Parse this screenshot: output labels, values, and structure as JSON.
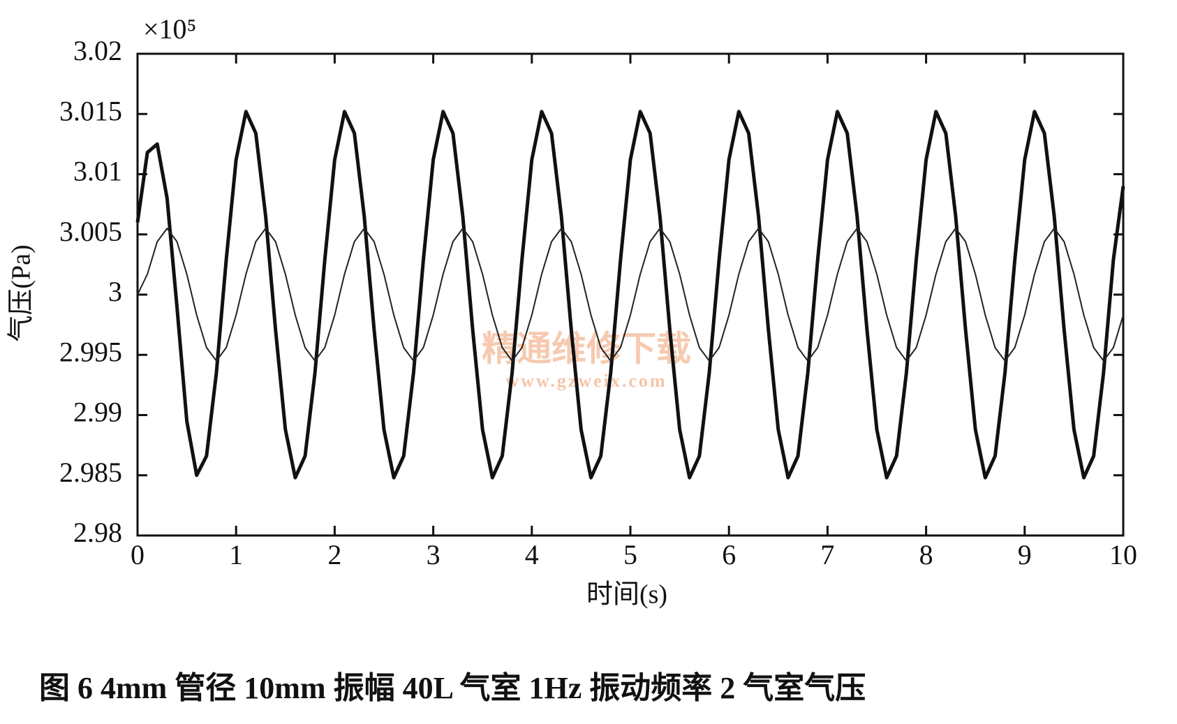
{
  "chart_data": {
    "type": "line",
    "y_multiplier": "×10⁵",
    "xlabel": "时间(s)",
    "ylabel": "气压(Pa)",
    "caption": "图 6   4mm 管径 10mm 振幅 40L 气室 1Hz 振动频率 2 气室气压",
    "watermark": [
      "精通维修下载",
      "www.gzweix.com"
    ],
    "xlim": [
      0,
      10
    ],
    "xticks": [
      0,
      1,
      2,
      3,
      4,
      5,
      6,
      7,
      8,
      9,
      10
    ],
    "ylim": [
      2.98,
      3.02
    ],
    "yticks": [
      2.98,
      2.985,
      2.99,
      2.995,
      3,
      3.005,
      3.01,
      3.015,
      3.02
    ],
    "x": [
      0,
      0.1,
      0.2,
      0.3,
      0.4,
      0.5,
      0.6,
      0.7,
      0.8,
      0.9,
      1,
      1.1,
      1.2,
      1.3,
      1.4,
      1.5,
      1.6,
      1.7,
      1.8,
      1.9,
      2,
      2.1,
      2.2,
      2.3,
      2.4,
      2.5,
      2.6,
      2.7,
      2.8,
      2.9,
      3,
      3.1,
      3.2,
      3.3,
      3.4,
      3.5,
      3.6,
      3.7,
      3.8,
      3.9,
      4,
      4.1,
      4.2,
      4.3,
      4.4,
      4.5,
      4.6,
      4.7,
      4.8,
      4.9,
      5,
      5.1,
      5.2,
      5.3,
      5.4,
      5.5,
      5.6,
      5.7,
      5.8,
      5.9,
      6,
      6.1,
      6.2,
      6.3,
      6.4,
      6.5,
      6.6,
      6.7,
      6.8,
      6.9,
      7,
      7.1,
      7.2,
      7.3,
      7.4,
      7.5,
      7.6,
      7.7,
      7.8,
      7.9,
      8,
      8.1,
      8.2,
      8.3,
      8.4,
      8.5,
      8.6,
      8.7,
      8.8,
      8.9,
      9,
      9.1,
      9.2,
      9.3,
      9.4,
      9.5,
      9.6,
      9.7,
      9.8,
      9.9,
      10
    ],
    "series": [
      {
        "color": "#111111",
        "values": [
          3.006,
          3.0118,
          3.0125,
          3.008,
          2.999,
          2.9895,
          2.985,
          2.9866,
          2.9935,
          3.0029,
          3.0112,
          3.0152,
          3.0134,
          3.0065,
          2.9971,
          2.9888,
          2.9848,
          2.9866,
          2.9935,
          3.0029,
          3.0112,
          3.0152,
          3.0134,
          3.0065,
          2.9971,
          2.9888,
          2.9848,
          2.9866,
          2.9935,
          3.0029,
          3.0112,
          3.0152,
          3.0134,
          3.0065,
          2.9971,
          2.9888,
          2.9848,
          2.9866,
          2.9935,
          3.0029,
          3.0112,
          3.0152,
          3.0134,
          3.0065,
          2.9971,
          2.9888,
          2.9848,
          2.9866,
          2.9935,
          3.0029,
          3.0112,
          3.0152,
          3.0134,
          3.0065,
          2.9971,
          2.9888,
          2.9848,
          2.9866,
          2.9935,
          3.0029,
          3.0112,
          3.0152,
          3.0134,
          3.0065,
          2.9971,
          2.9888,
          2.9848,
          2.9866,
          2.9935,
          3.0029,
          3.0112,
          3.0152,
          3.0134,
          3.0065,
          2.9971,
          2.9888,
          2.9848,
          2.9866,
          2.9935,
          3.0029,
          3.0112,
          3.0152,
          3.0134,
          3.0065,
          2.9971,
          2.9888,
          2.9848,
          2.9866,
          2.9935,
          3.0029,
          3.0112,
          3.0152,
          3.0134,
          3.0065,
          2.9971,
          2.9888,
          2.9848,
          2.9866,
          2.9935,
          3.0029,
          3.009
        ]
      },
      {
        "color": "#222222",
        "values": [
          3.0,
          3.0017,
          3.0044,
          3.0055,
          3.0044,
          3.0017,
          2.9983,
          2.9956,
          2.9945,
          2.9956,
          2.9983,
          3.0017,
          3.0044,
          3.0055,
          3.0044,
          3.0017,
          2.9983,
          2.9956,
          2.9945,
          2.9956,
          2.9983,
          3.0017,
          3.0044,
          3.0055,
          3.0044,
          3.0017,
          2.9983,
          2.9956,
          2.9945,
          2.9956,
          2.9983,
          3.0017,
          3.0044,
          3.0055,
          3.0044,
          3.0017,
          2.9983,
          2.9956,
          2.9945,
          2.9956,
          2.9983,
          3.0017,
          3.0044,
          3.0055,
          3.0044,
          3.0017,
          2.9983,
          2.9956,
          2.9945,
          2.9956,
          2.9983,
          3.0017,
          3.0044,
          3.0055,
          3.0044,
          3.0017,
          2.9983,
          2.9956,
          2.9945,
          2.9956,
          2.9983,
          3.0017,
          3.0044,
          3.0055,
          3.0044,
          3.0017,
          2.9983,
          2.9956,
          2.9945,
          2.9956,
          2.9983,
          3.0017,
          3.0044,
          3.0055,
          3.0044,
          3.0017,
          2.9983,
          2.9956,
          2.9945,
          2.9956,
          2.9983,
          3.0017,
          3.0044,
          3.0055,
          3.0044,
          3.0017,
          2.9983,
          2.9956,
          2.9945,
          2.9956,
          2.9983,
          3.0017,
          3.0044,
          3.0055,
          3.0044,
          3.0017,
          2.9983,
          2.9956,
          2.9945,
          2.9956,
          2.9983
        ]
      }
    ]
  }
}
